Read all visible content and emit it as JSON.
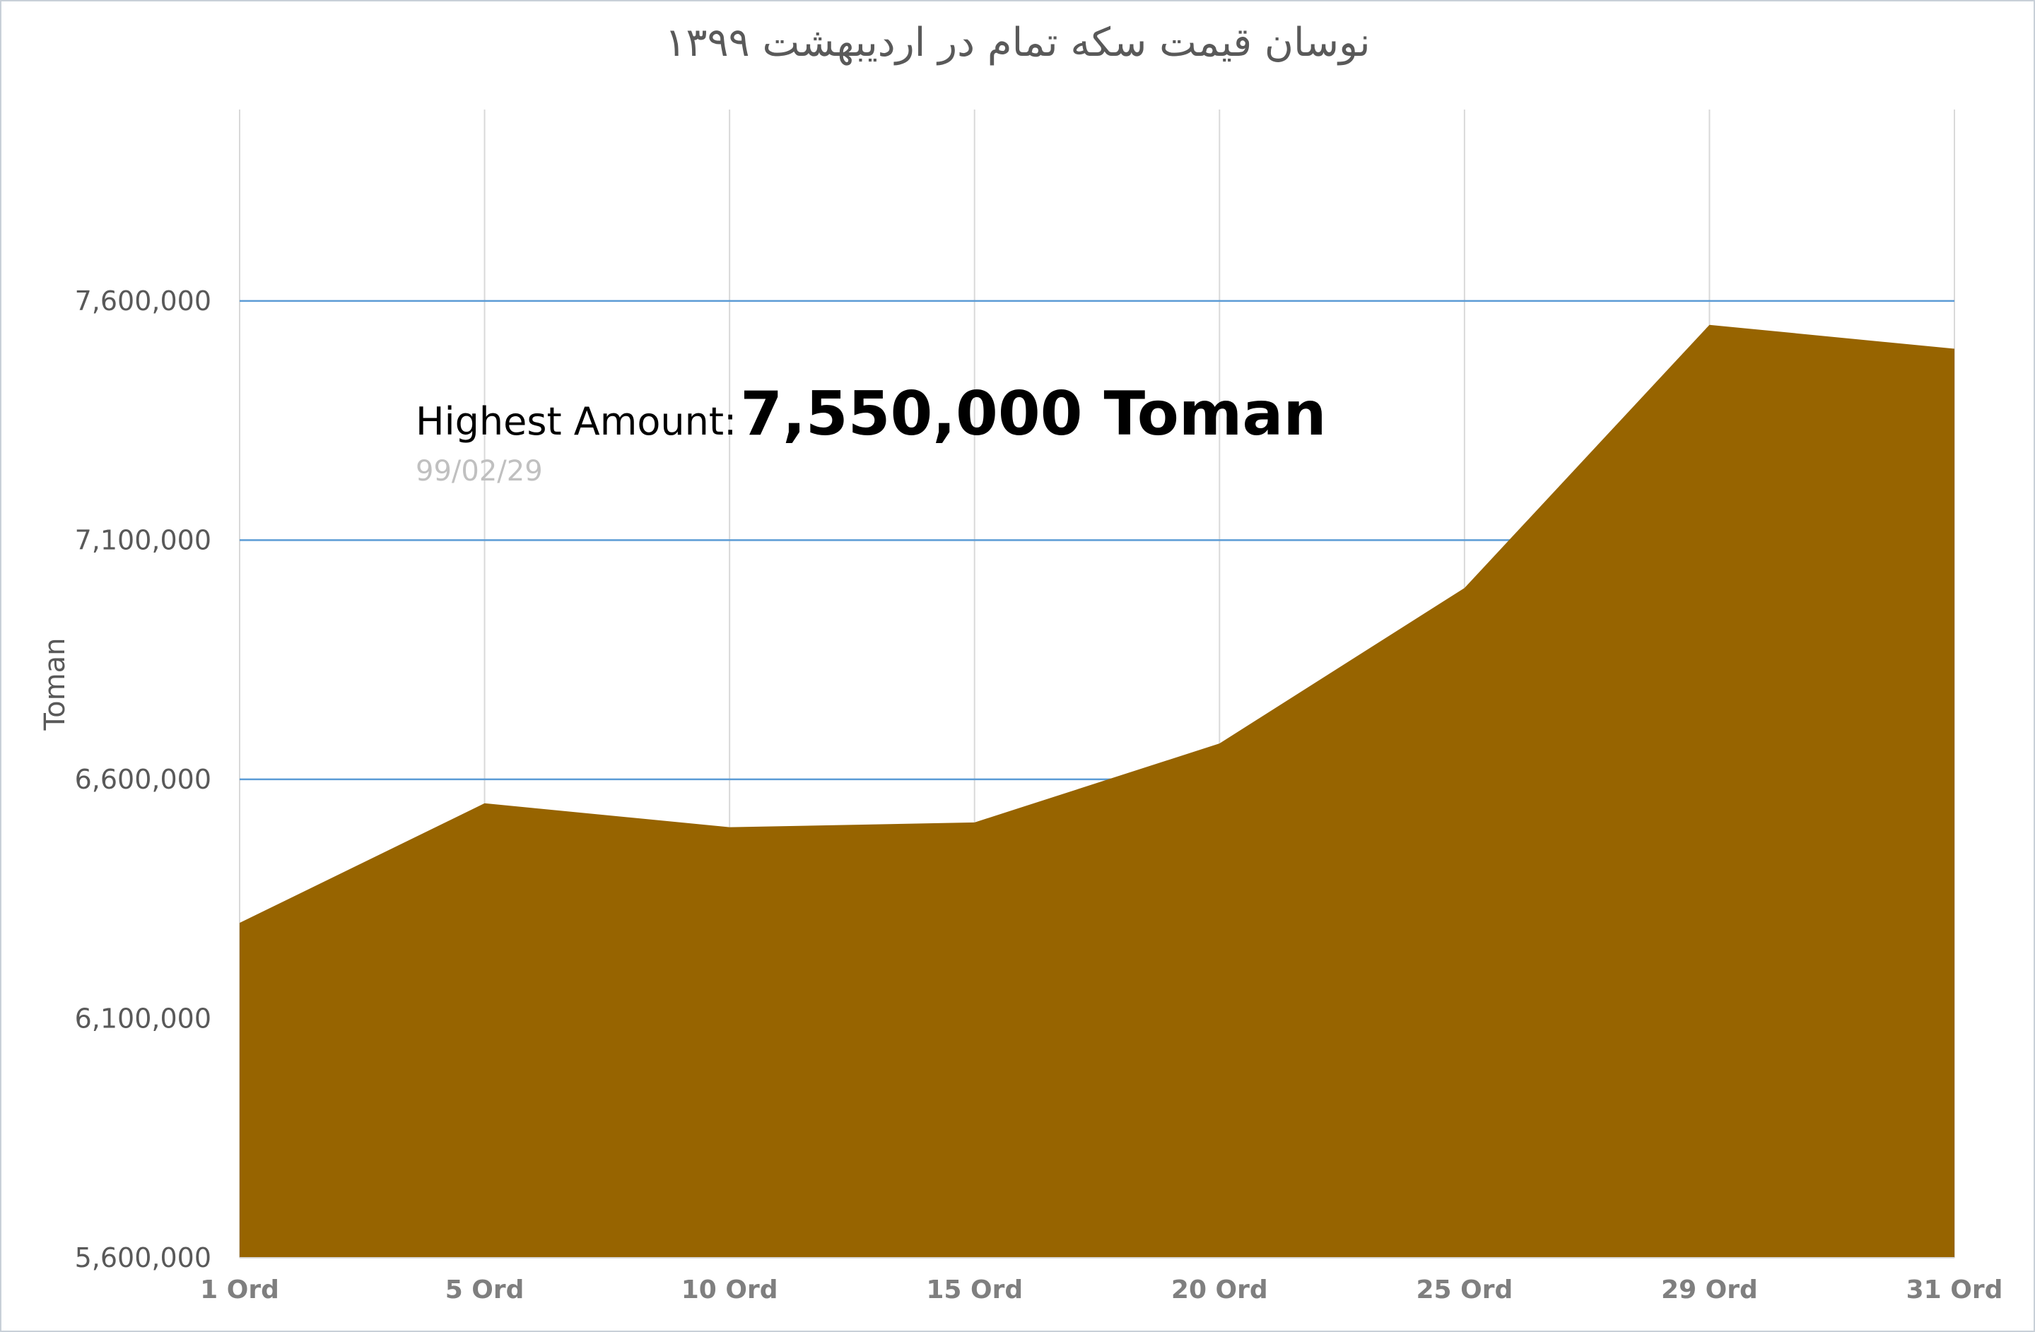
{
  "chart_data": {
    "type": "area",
    "title": "نوسان قیمت سکه تمام در اردیبهشت ۱۳۹۹",
    "ylabel": "Toman",
    "xlabel": "",
    "categories": [
      "1 Ord",
      "5 Ord",
      "10 Ord",
      "15 Ord",
      "20 Ord",
      "25 Ord",
      "29 Ord",
      "31 Ord"
    ],
    "series": [
      {
        "values": [
          6300000,
          6550000,
          6500000,
          6510000,
          6675000,
          7000000,
          7550000,
          7500000
        ],
        "color": "#976400"
      }
    ],
    "ylim": [
      5600000,
      8000000
    ],
    "yticks": [
      5600000,
      6100000,
      6600000,
      7100000,
      7600000
    ],
    "ytick_labels": [
      "5,600,000",
      "6,100,000",
      "6,600,000",
      "7,100,000",
      "7,600,000"
    ],
    "grid": {
      "horizontal": true,
      "vertical": true,
      "horizontal_color": "#5b9bd5",
      "vertical_color": "#d9d9d9"
    },
    "annotation": {
      "label": "Highest Amount:",
      "value": "7,550,000 Toman",
      "date": "99/02/29"
    }
  }
}
